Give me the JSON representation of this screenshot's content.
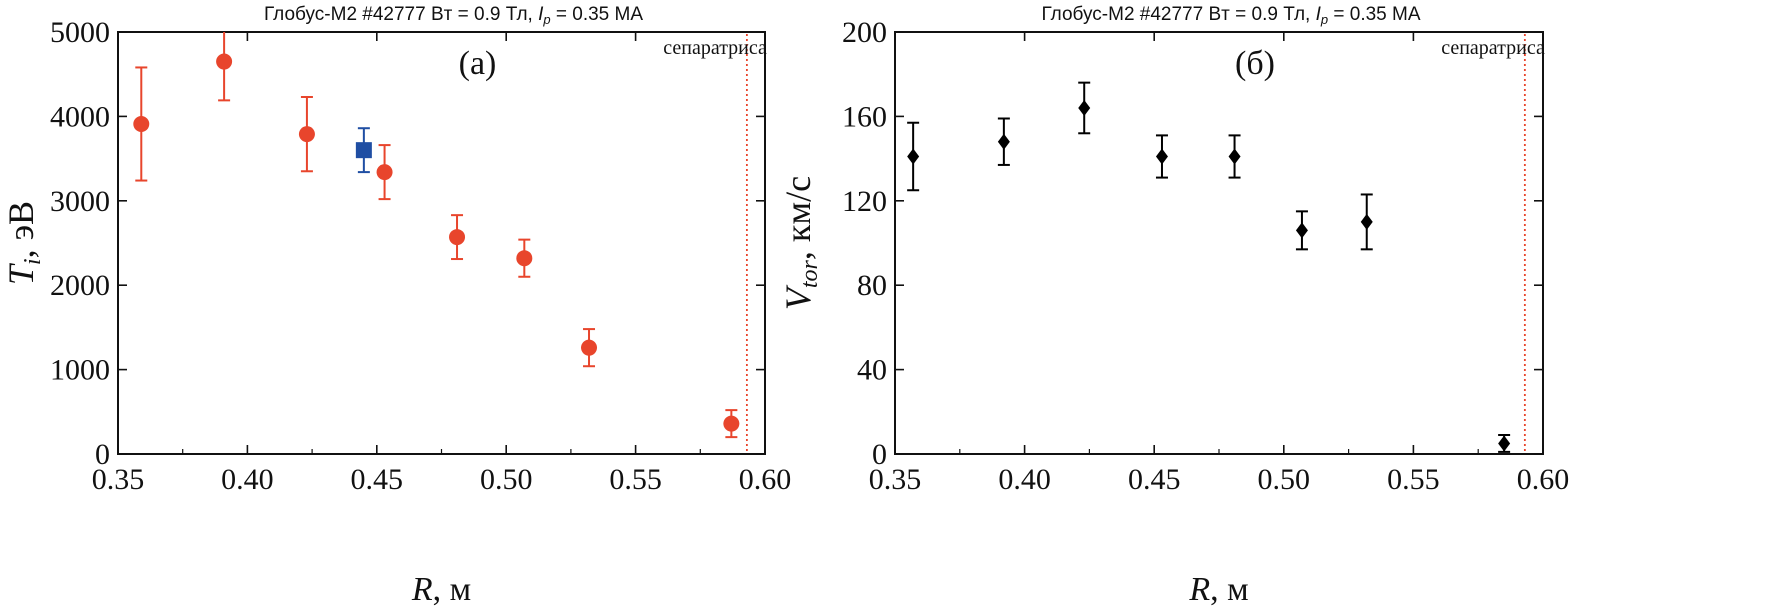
{
  "figure": {
    "title_template": "Глобус-М2 #42777 Bт = 0.9 Тл, Ip = 0.35 MA"
  },
  "chart_data": [
    {
      "type": "scatter",
      "panel_label": "(а)",
      "title": {
        "prefix": "Глобус-М2 #42777 Bт = 0.9 Тл, ",
        "ip_symbol": "I",
        "ip_sub": "p",
        "suffix": " = 0.35 MA"
      },
      "xlabel": {
        "symbol": "R",
        "rest": ", м"
      },
      "ylabel": {
        "symbol": "T",
        "sub": "i",
        "rest": ", эВ"
      },
      "xlim": [
        0.35,
        0.6
      ],
      "ylim": [
        0,
        5000
      ],
      "xticks": [
        0.35,
        0.4,
        0.45,
        0.5,
        0.55,
        0.6
      ],
      "xtick_labels": [
        "0.35",
        "0.40",
        "0.45",
        "0.50",
        "0.55",
        "0.60"
      ],
      "yticks": [
        0,
        1000,
        2000,
        3000,
        4000,
        5000
      ],
      "ytick_labels": [
        "0",
        "1000",
        "2000",
        "3000",
        "4000",
        "5000"
      ],
      "separatrix": {
        "x": 0.593,
        "label": "сепаратриса",
        "color": "#e8452c"
      },
      "series": [
        {
          "name": "Ti (red circles)",
          "marker": "circle",
          "color": "#e8452c",
          "points": [
            {
              "x": 0.359,
              "y": 3910,
              "err": 670
            },
            {
              "x": 0.391,
              "y": 4650,
              "err": 460
            },
            {
              "x": 0.423,
              "y": 3790,
              "err": 440
            },
            {
              "x": 0.453,
              "y": 3340,
              "err": 320
            },
            {
              "x": 0.481,
              "y": 2570,
              "err": 260
            },
            {
              "x": 0.507,
              "y": 2320,
              "err": 220
            },
            {
              "x": 0.532,
              "y": 1260,
              "err": 220
            },
            {
              "x": 0.587,
              "y": 360,
              "err": 160
            }
          ]
        },
        {
          "name": "Ti (blue square)",
          "marker": "square",
          "color": "#1f4ea3",
          "points": [
            {
              "x": 0.445,
              "y": 3600,
              "err": 260
            }
          ]
        }
      ]
    },
    {
      "type": "scatter",
      "panel_label": "(б)",
      "title": {
        "prefix": "Глобус-М2 #42777 Bт = 0.9 Тл, ",
        "ip_symbol": "I",
        "ip_sub": "p",
        "suffix": " = 0.35 MA"
      },
      "xlabel": {
        "symbol": "R",
        "rest": ", м"
      },
      "ylabel": {
        "symbol": "V",
        "sub": "tor",
        "rest": ", км/с"
      },
      "xlim": [
        0.35,
        0.6
      ],
      "ylim": [
        0,
        200
      ],
      "xticks": [
        0.35,
        0.4,
        0.45,
        0.5,
        0.55,
        0.6
      ],
      "xtick_labels": [
        "0.35",
        "0.40",
        "0.45",
        "0.50",
        "0.55",
        "0.60"
      ],
      "yticks": [
        0,
        40,
        80,
        120,
        160,
        200
      ],
      "ytick_labels": [
        "0",
        "40",
        "80",
        "120",
        "160",
        "200"
      ],
      "separatrix": {
        "x": 0.593,
        "label": "сепаратриса",
        "color": "#e8452c"
      },
      "series": [
        {
          "name": "Vtor",
          "marker": "diamond",
          "color": "#000000",
          "points": [
            {
              "x": 0.357,
              "y": 141,
              "err": 16
            },
            {
              "x": 0.392,
              "y": 148,
              "err": 11
            },
            {
              "x": 0.423,
              "y": 164,
              "err": 12
            },
            {
              "x": 0.453,
              "y": 141,
              "err": 10
            },
            {
              "x": 0.481,
              "y": 141,
              "err": 10
            },
            {
              "x": 0.507,
              "y": 106,
              "err": 9
            },
            {
              "x": 0.532,
              "y": 110,
              "err": 13
            },
            {
              "x": 0.585,
              "y": 5,
              "err": 4
            }
          ]
        }
      ]
    }
  ]
}
